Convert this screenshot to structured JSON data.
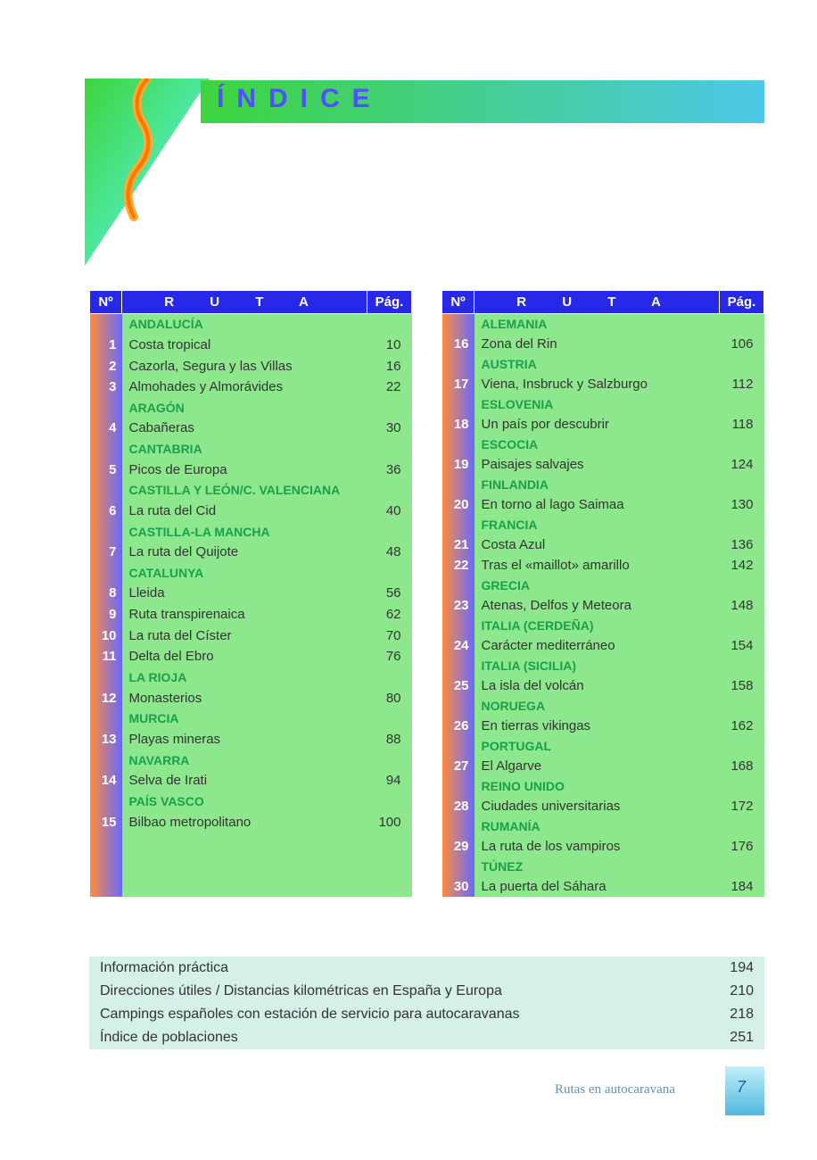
{
  "title": "ÍNDICE",
  "headers": {
    "num": "Nº",
    "ruta": "R   U   T   A",
    "pag": "Pág."
  },
  "left": [
    {
      "region": "ANDALUCÍA"
    },
    {
      "n": "1",
      "name": "Costa tropical",
      "p": "10"
    },
    {
      "n": "2",
      "name": "Cazorla, Segura y las Villas",
      "p": "16"
    },
    {
      "n": "3",
      "name": "Almohades y Almorávides",
      "p": "22"
    },
    {
      "region": "ARAGÓN"
    },
    {
      "n": "4",
      "name": "Cabañeras",
      "p": "30"
    },
    {
      "region": "CANTABRIA"
    },
    {
      "n": "5",
      "name": "Picos de Europa",
      "p": "36"
    },
    {
      "region": "CASTILLA Y LEÓN/C. VALENCIANA"
    },
    {
      "n": "6",
      "name": "La ruta del Cid",
      "p": "40"
    },
    {
      "region": "CASTILLA-LA MANCHA"
    },
    {
      "n": "7",
      "name": "La ruta del Quijote",
      "p": "48"
    },
    {
      "region": "CATALUNYA"
    },
    {
      "n": "8",
      "name": "Lleida",
      "p": "56"
    },
    {
      "n": "9",
      "name": "Ruta transpirenaica",
      "p": "62"
    },
    {
      "n": "10",
      "name": "La ruta del Císter",
      "p": "70"
    },
    {
      "n": "11",
      "name": "Delta del Ebro",
      "p": "76"
    },
    {
      "region": "LA RIOJA"
    },
    {
      "n": "12",
      "name": "Monasterios",
      "p": "80"
    },
    {
      "region": "MURCIA"
    },
    {
      "n": "13",
      "name": "Playas mineras",
      "p": "88"
    },
    {
      "region": "NAVARRA"
    },
    {
      "n": "14",
      "name": "Selva de Irati",
      "p": "94"
    },
    {
      "region": "PAÍS VASCO"
    },
    {
      "n": "15",
      "name": "Bilbao metropolitano",
      "p": "100"
    }
  ],
  "right": [
    {
      "region": "ALEMANIA"
    },
    {
      "n": "16",
      "name": "Zona del Rin",
      "p": "106"
    },
    {
      "region": "AUSTRIA"
    },
    {
      "n": "17",
      "name": "Viena, Insbruck y Salzburgo",
      "p": "112"
    },
    {
      "region": "ESLOVENIA"
    },
    {
      "n": "18",
      "name": "Un país por descubrir",
      "p": "118"
    },
    {
      "region": "ESCOCIA"
    },
    {
      "n": "19",
      "name": "Paisajes salvajes",
      "p": "124"
    },
    {
      "region": "FINLANDIA"
    },
    {
      "n": "20",
      "name": "En torno al lago Saimaa",
      "p": "130"
    },
    {
      "region": "FRANCIA"
    },
    {
      "n": "21",
      "name": "Costa Azul",
      "p": "136"
    },
    {
      "n": "22",
      "name": "Tras el «maillot» amarillo",
      "p": "142"
    },
    {
      "region": "GRECIA"
    },
    {
      "n": "23",
      "name": "Atenas, Delfos y Meteora",
      "p": "148"
    },
    {
      "region": "ITALIA (CERDEÑA)"
    },
    {
      "n": "24",
      "name": "Carácter mediterráneo",
      "p": "154"
    },
    {
      "region": "ITALIA (SICILIA)"
    },
    {
      "n": "25",
      "name": "La isla del volcán",
      "p": "158"
    },
    {
      "region": "NORUEGA"
    },
    {
      "n": "26",
      "name": "En tierras vikingas",
      "p": "162"
    },
    {
      "region": "PORTUGAL"
    },
    {
      "n": "27",
      "name": "El Algarve",
      "p": "168"
    },
    {
      "region": "REINO UNIDO"
    },
    {
      "n": "28",
      "name": "Ciudades universitarias",
      "p": "172"
    },
    {
      "region": "RUMANÍA"
    },
    {
      "n": "29",
      "name": "La ruta de los vampiros",
      "p": "176"
    },
    {
      "region": "TÚNEZ"
    },
    {
      "n": "30",
      "name": "La puerta del Sáhara",
      "p": "184"
    }
  ],
  "bottom": [
    {
      "name": "Información práctica",
      "p": "194"
    },
    {
      "name": "Direcciones útiles / Distancias kilométricas en España y Europa",
      "p": "210"
    },
    {
      "name": "Campings españoles con estación de servicio para autocaravanas",
      "p": "218"
    },
    {
      "name": "Índice de poblaciones",
      "p": "251"
    }
  ],
  "footer": "Rutas en autocaravana",
  "pagenum": "7",
  "left_fillers": 3,
  "colors": {
    "header_blue": "#2828e8",
    "cell_green": "#8de88d",
    "region_text": "#1a9f4d",
    "bottom_bg": "#d4f0e8"
  }
}
